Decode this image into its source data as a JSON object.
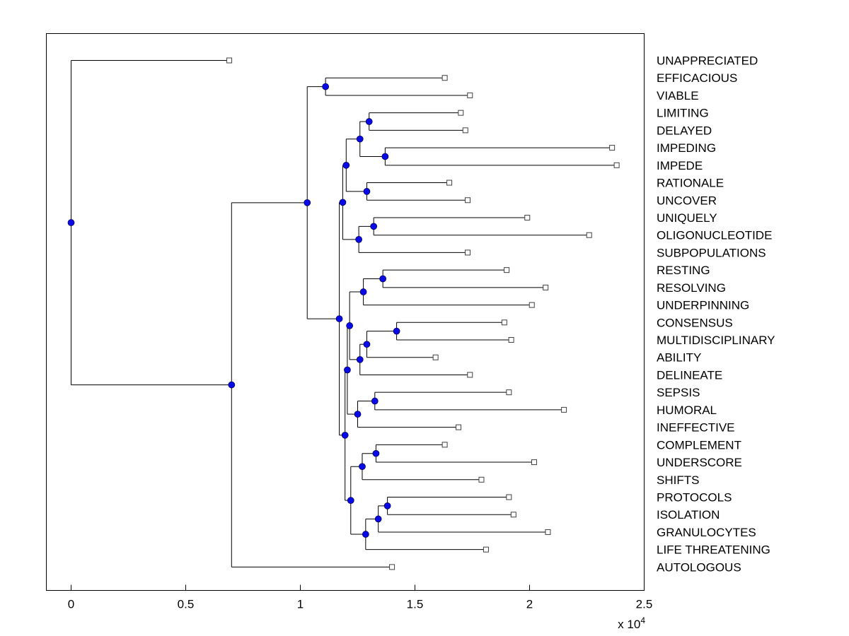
{
  "figure": {
    "background": "#ffffff",
    "colors": {
      "axis": "#000000",
      "branch_line": "#000000",
      "internal_node": "#0a0ae6",
      "internal_node_edge": "#000050",
      "leaf_marker_fill": "#ffffff",
      "leaf_marker_stroke": "#404040",
      "text": "#000000"
    },
    "x_axis": {
      "tick_labels": [
        "0",
        "0.5",
        "1",
        "1.5",
        "2",
        "2.5"
      ],
      "tick_values": [
        0,
        5000,
        10000,
        15000,
        20000,
        25000
      ],
      "multiplier_base": "x 10",
      "multiplier_exponent": "4"
    }
  },
  "chart_data": {
    "type": "dendrogram",
    "orientation": "horizontal",
    "leaf_label_side": "right",
    "title": "",
    "xlabel": "",
    "x_axis_multiplier": "1e4",
    "x_range": [
      0,
      25000
    ],
    "grid": false,
    "legend": null,
    "leaves": [
      {
        "label": "UNAPPRECIATED",
        "value": 6900
      },
      {
        "label": "EFFICACIOUS",
        "value": 16300
      },
      {
        "label": "VIABLE",
        "value": 17400
      },
      {
        "label": "LIMITING",
        "value": 17000
      },
      {
        "label": "DELAYED",
        "value": 17200
      },
      {
        "label": "IMPEDING",
        "value": 23600
      },
      {
        "label": "IMPEDE",
        "value": 23800
      },
      {
        "label": "RATIONALE",
        "value": 16500
      },
      {
        "label": "UNCOVER",
        "value": 17300
      },
      {
        "label": "UNIQUELY",
        "value": 19900
      },
      {
        "label": "OLIGONUCLEOTIDE",
        "value": 22600
      },
      {
        "label": "SUBPOPULATIONS",
        "value": 17300
      },
      {
        "label": "RESTING",
        "value": 19000
      },
      {
        "label": "RESOLVING",
        "value": 20700
      },
      {
        "label": "UNDERPINNING",
        "value": 20100
      },
      {
        "label": "CONSENSUS",
        "value": 18900
      },
      {
        "label": "MULTIDISCIPLINARY",
        "value": 19200
      },
      {
        "label": "ABILITY",
        "value": 15900
      },
      {
        "label": "DELINEATE",
        "value": 17400
      },
      {
        "label": "SEPSIS",
        "value": 19100
      },
      {
        "label": "HUMORAL",
        "value": 21500
      },
      {
        "label": "INEFFECTIVE",
        "value": 16900
      },
      {
        "label": "COMPLEMENT",
        "value": 16300
      },
      {
        "label": "UNDERSCORE",
        "value": 20200
      },
      {
        "label": "SHIFTS",
        "value": 17900
      },
      {
        "label": "PROTOCOLS",
        "value": 19100
      },
      {
        "label": "ISOLATION",
        "value": 19300
      },
      {
        "label": "GRANULOCYTES",
        "value": 20800
      },
      {
        "label": "LIFE THREATENING",
        "value": 18100
      },
      {
        "label": "AUTOLOGOUS",
        "value": 14000
      }
    ],
    "tree": {
      "v": 0,
      "c": [
        {
          "leaf": "UNAPPRECIATED",
          "v": 6900
        },
        {
          "v": 7000,
          "c": [
            {
              "v": 10300,
              "c": [
                {
                  "v": 11100,
                  "c": [
                    {
                      "leaf": "EFFICACIOUS",
                      "v": 16300
                    },
                    {
                      "leaf": "VIABLE",
                      "v": 17400
                    }
                  ]
                },
                {
                  "v": 11700,
                  "c": [
                    {
                      "v": 11850,
                      "c": [
                        {
                          "v": 12000,
                          "c": [
                            {
                              "v": 12600,
                              "c": [
                                {
                                  "v": 13000,
                                  "c": [
                                    {
                                      "leaf": "LIMITING",
                                      "v": 17000
                                    },
                                    {
                                      "leaf": "DELAYED",
                                      "v": 17200
                                    }
                                  ]
                                },
                                {
                                  "v": 13700,
                                  "c": [
                                    {
                                      "leaf": "IMPEDING",
                                      "v": 23600
                                    },
                                    {
                                      "leaf": "IMPEDE",
                                      "v": 23800
                                    }
                                  ]
                                }
                              ]
                            },
                            {
                              "v": 12900,
                              "c": [
                                {
                                  "leaf": "RATIONALE",
                                  "v": 16500
                                },
                                {
                                  "leaf": "UNCOVER",
                                  "v": 17300
                                }
                              ]
                            }
                          ]
                        },
                        {
                          "v": 12550,
                          "c": [
                            {
                              "v": 13200,
                              "c": [
                                {
                                  "leaf": "UNIQUELY",
                                  "v": 19900
                                },
                                {
                                  "leaf": "OLIGONUCLEOTIDE",
                                  "v": 22600
                                }
                              ]
                            },
                            {
                              "leaf": "SUBPOPULATIONS",
                              "v": 17300
                            }
                          ]
                        }
                      ]
                    },
                    {
                      "v": 11950,
                      "c": [
                        {
                          "v": 12050,
                          "c": [
                            {
                              "v": 12150,
                              "c": [
                                {
                                  "v": 12750,
                                  "c": [
                                    {
                                      "v": 13600,
                                      "c": [
                                        {
                                          "leaf": "RESTING",
                                          "v": 19000
                                        },
                                        {
                                          "leaf": "RESOLVING",
                                          "v": 20700
                                        }
                                      ]
                                    },
                                    {
                                      "leaf": "UNDERPINNING",
                                      "v": 20100
                                    }
                                  ]
                                },
                                {
                                  "v": 12600,
                                  "c": [
                                    {
                                      "v": 12900,
                                      "c": [
                                        {
                                          "v": 14200,
                                          "c": [
                                            {
                                              "leaf": "CONSENSUS",
                                              "v": 18900
                                            },
                                            {
                                              "leaf": "MULTIDISCIPLINARY",
                                              "v": 19200
                                            }
                                          ]
                                        },
                                        {
                                          "leaf": "ABILITY",
                                          "v": 15900
                                        }
                                      ]
                                    },
                                    {
                                      "leaf": "DELINEATE",
                                      "v": 17400
                                    }
                                  ]
                                }
                              ]
                            },
                            {
                              "v": 12500,
                              "c": [
                                {
                                  "v": 13250,
                                  "c": [
                                    {
                                      "leaf": "SEPSIS",
                                      "v": 19100
                                    },
                                    {
                                      "leaf": "HUMORAL",
                                      "v": 21500
                                    }
                                  ]
                                },
                                {
                                  "leaf": "INEFFECTIVE",
                                  "v": 16900
                                }
                              ]
                            }
                          ]
                        },
                        {
                          "v": 12200,
                          "c": [
                            {
                              "v": 12700,
                              "c": [
                                {
                                  "v": 13300,
                                  "c": [
                                    {
                                      "leaf": "COMPLEMENT",
                                      "v": 16300
                                    },
                                    {
                                      "leaf": "UNDERSCORE",
                                      "v": 20200
                                    }
                                  ]
                                },
                                {
                                  "leaf": "SHIFTS",
                                  "v": 17900
                                }
                              ]
                            },
                            {
                              "v": 12850,
                              "c": [
                                {
                                  "v": 13400,
                                  "c": [
                                    {
                                      "v": 13800,
                                      "c": [
                                        {
                                          "leaf": "PROTOCOLS",
                                          "v": 19100
                                        },
                                        {
                                          "leaf": "ISOLATION",
                                          "v": 19300
                                        }
                                      ]
                                    },
                                    {
                                      "leaf": "GRANULOCYTES",
                                      "v": 20800
                                    }
                                  ]
                                },
                                {
                                  "leaf": "LIFE THREATENING",
                                  "v": 18100
                                }
                              ]
                            }
                          ]
                        }
                      ]
                    }
                  ]
                }
              ]
            },
            {
              "leaf": "AUTOLOGOUS",
              "v": 14000
            }
          ]
        }
      ]
    }
  }
}
